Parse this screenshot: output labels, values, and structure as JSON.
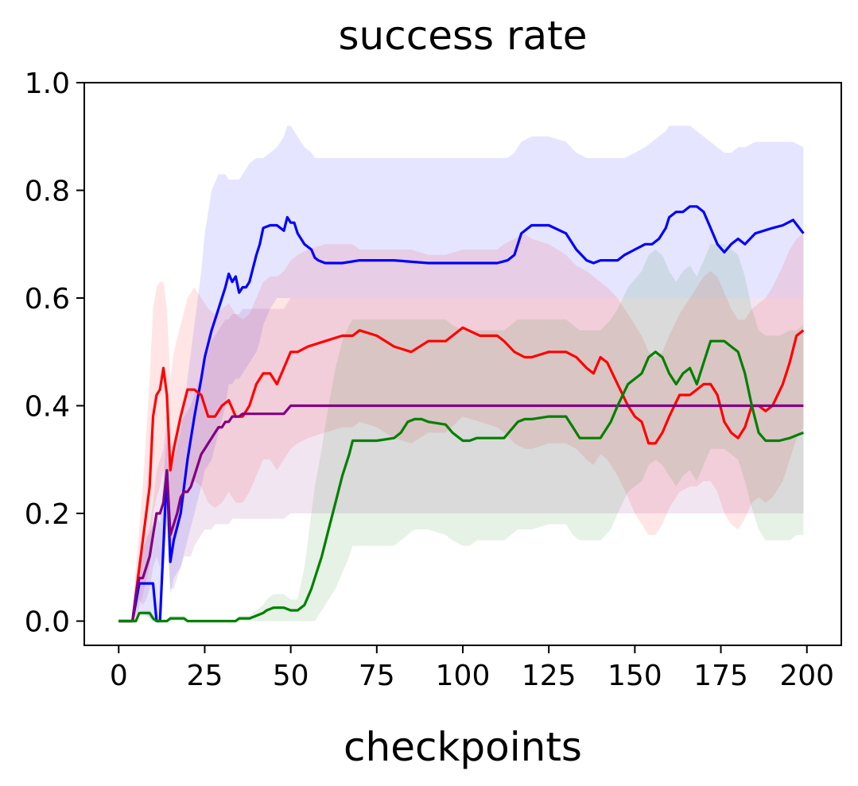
{
  "chart_data": {
    "type": "line",
    "title": "success rate",
    "xlabel": "checkpoints",
    "ylabel": "",
    "xlim": [
      -10,
      210
    ],
    "ylim": [
      -0.045,
      1.0
    ],
    "xticks": [
      0,
      25,
      50,
      75,
      100,
      125,
      150,
      175,
      200
    ],
    "xtick_labels": [
      "0",
      "25",
      "50",
      "75",
      "100",
      "125",
      "150",
      "175",
      "200"
    ],
    "yticks": [
      0.0,
      0.2,
      0.4,
      0.6,
      0.8,
      1.0
    ],
    "ytick_labels": [
      "0.0",
      "0.2",
      "0.4",
      "0.6",
      "0.8",
      "1.0"
    ],
    "grid": false,
    "legend": "none",
    "series": [
      {
        "color": "#0000ff",
        "x": [
          0,
          4,
          6,
          10,
          11,
          12,
          14,
          15,
          16,
          18,
          20,
          22,
          24,
          25,
          27,
          29,
          31,
          32,
          33,
          34,
          35,
          36,
          37,
          38,
          40,
          41,
          42,
          44,
          46,
          48,
          49,
          50,
          51,
          52,
          54,
          56,
          57,
          58,
          60,
          62,
          65,
          70,
          80,
          90,
          100,
          110,
          113,
          115,
          117,
          120,
          125,
          130,
          133,
          136,
          138,
          140,
          145,
          147,
          150,
          153,
          155,
          157,
          159,
          160,
          162,
          164,
          166,
          168,
          170,
          172,
          174,
          176,
          178,
          180,
          182,
          185,
          190,
          193,
          196,
          199
        ],
        "y": [
          0.0,
          0.0,
          0.07,
          0.07,
          0.0,
          0.0,
          0.28,
          0.11,
          0.15,
          0.2,
          0.3,
          0.38,
          0.45,
          0.49,
          0.54,
          0.58,
          0.62,
          0.645,
          0.63,
          0.64,
          0.61,
          0.62,
          0.62,
          0.63,
          0.68,
          0.7,
          0.73,
          0.735,
          0.735,
          0.725,
          0.75,
          0.74,
          0.74,
          0.72,
          0.7,
          0.69,
          0.675,
          0.67,
          0.665,
          0.665,
          0.665,
          0.67,
          0.67,
          0.665,
          0.665,
          0.665,
          0.67,
          0.68,
          0.72,
          0.735,
          0.735,
          0.72,
          0.69,
          0.67,
          0.665,
          0.67,
          0.67,
          0.68,
          0.69,
          0.7,
          0.7,
          0.71,
          0.73,
          0.75,
          0.76,
          0.76,
          0.77,
          0.77,
          0.76,
          0.73,
          0.7,
          0.685,
          0.7,
          0.71,
          0.7,
          0.72,
          0.73,
          0.735,
          0.745,
          0.72
        ],
        "band_upper": [
          0.0,
          0.0,
          0.12,
          0.18,
          0.2,
          0.18,
          0.35,
          0.3,
          0.3,
          0.35,
          0.45,
          0.55,
          0.65,
          0.72,
          0.8,
          0.83,
          0.83,
          0.82,
          0.82,
          0.82,
          0.82,
          0.83,
          0.84,
          0.85,
          0.86,
          0.86,
          0.86,
          0.87,
          0.88,
          0.9,
          0.92,
          0.92,
          0.91,
          0.9,
          0.88,
          0.87,
          0.86,
          0.86,
          0.86,
          0.86,
          0.86,
          0.86,
          0.86,
          0.86,
          0.86,
          0.86,
          0.86,
          0.87,
          0.89,
          0.9,
          0.9,
          0.89,
          0.87,
          0.86,
          0.86,
          0.86,
          0.86,
          0.86,
          0.87,
          0.88,
          0.89,
          0.9,
          0.91,
          0.92,
          0.92,
          0.92,
          0.92,
          0.91,
          0.9,
          0.89,
          0.88,
          0.87,
          0.87,
          0.88,
          0.88,
          0.89,
          0.89,
          0.89,
          0.89,
          0.88
        ],
        "band_lower": [
          0.0,
          0.0,
          0.02,
          0.0,
          0.0,
          0.0,
          0.18,
          0.05,
          0.08,
          0.1,
          0.15,
          0.2,
          0.25,
          0.28,
          0.3,
          0.35,
          0.4,
          0.44,
          0.44,
          0.45,
          0.45,
          0.46,
          0.47,
          0.48,
          0.5,
          0.52,
          0.55,
          0.58,
          0.6,
          0.6,
          0.6,
          0.6,
          0.6,
          0.6,
          0.6,
          0.6,
          0.6,
          0.6,
          0.6,
          0.6,
          0.6,
          0.6,
          0.6,
          0.6,
          0.6,
          0.6,
          0.6,
          0.6,
          0.6,
          0.6,
          0.6,
          0.6,
          0.6,
          0.6,
          0.6,
          0.6,
          0.6,
          0.6,
          0.6,
          0.6,
          0.6,
          0.6,
          0.6,
          0.6,
          0.6,
          0.6,
          0.6,
          0.6,
          0.6,
          0.6,
          0.6,
          0.6,
          0.6,
          0.6,
          0.6,
          0.6,
          0.6,
          0.6,
          0.6,
          0.6
        ]
      },
      {
        "color": "#ff0000",
        "x": [
          0,
          4,
          5,
          7,
          9,
          10,
          11,
          12,
          13,
          14,
          15,
          16,
          18,
          20,
          22,
          24,
          26,
          28,
          30,
          32,
          34,
          36,
          38,
          40,
          42,
          44,
          46,
          48,
          50,
          52,
          55,
          60,
          65,
          68,
          70,
          75,
          80,
          85,
          90,
          95,
          100,
          105,
          110,
          112,
          115,
          118,
          120,
          125,
          130,
          133,
          136,
          138,
          140,
          142,
          145,
          148,
          150,
          152,
          154,
          156,
          158,
          160,
          163,
          166,
          168,
          170,
          172,
          174,
          176,
          178,
          180,
          182,
          184,
          186,
          188,
          190,
          193,
          195,
          197,
          199
        ],
        "y": [
          0.0,
          0.0,
          0.05,
          0.15,
          0.25,
          0.38,
          0.42,
          0.43,
          0.47,
          0.42,
          0.28,
          0.32,
          0.38,
          0.43,
          0.43,
          0.42,
          0.38,
          0.38,
          0.4,
          0.41,
          0.38,
          0.38,
          0.4,
          0.44,
          0.46,
          0.46,
          0.44,
          0.47,
          0.5,
          0.5,
          0.51,
          0.52,
          0.53,
          0.53,
          0.54,
          0.53,
          0.51,
          0.5,
          0.52,
          0.52,
          0.545,
          0.53,
          0.53,
          0.52,
          0.5,
          0.49,
          0.49,
          0.5,
          0.5,
          0.49,
          0.47,
          0.46,
          0.49,
          0.48,
          0.44,
          0.4,
          0.38,
          0.37,
          0.33,
          0.33,
          0.35,
          0.38,
          0.42,
          0.42,
          0.43,
          0.44,
          0.44,
          0.42,
          0.37,
          0.35,
          0.34,
          0.36,
          0.4,
          0.4,
          0.39,
          0.4,
          0.44,
          0.48,
          0.53,
          0.54
        ],
        "band_upper": [
          0.0,
          0.0,
          0.1,
          0.25,
          0.45,
          0.58,
          0.62,
          0.63,
          0.63,
          0.58,
          0.45,
          0.5,
          0.55,
          0.6,
          0.62,
          0.6,
          0.58,
          0.57,
          0.58,
          0.59,
          0.57,
          0.56,
          0.57,
          0.6,
          0.63,
          0.64,
          0.64,
          0.65,
          0.67,
          0.68,
          0.69,
          0.7,
          0.7,
          0.7,
          0.69,
          0.69,
          0.69,
          0.69,
          0.68,
          0.68,
          0.69,
          0.69,
          0.69,
          0.7,
          0.71,
          0.72,
          0.71,
          0.7,
          0.68,
          0.66,
          0.65,
          0.64,
          0.63,
          0.62,
          0.6,
          0.57,
          0.55,
          0.53,
          0.5,
          0.49,
          0.5,
          0.53,
          0.57,
          0.6,
          0.62,
          0.64,
          0.65,
          0.64,
          0.61,
          0.58,
          0.56,
          0.56,
          0.58,
          0.59,
          0.6,
          0.62,
          0.66,
          0.69,
          0.71,
          0.72
        ],
        "band_lower": [
          0.0,
          0.0,
          0.0,
          0.05,
          0.1,
          0.2,
          0.23,
          0.25,
          0.28,
          0.22,
          0.12,
          0.15,
          0.2,
          0.25,
          0.26,
          0.25,
          0.22,
          0.21,
          0.22,
          0.24,
          0.22,
          0.22,
          0.24,
          0.27,
          0.3,
          0.3,
          0.28,
          0.3,
          0.32,
          0.33,
          0.34,
          0.35,
          0.36,
          0.36,
          0.37,
          0.36,
          0.34,
          0.33,
          0.35,
          0.35,
          0.38,
          0.37,
          0.36,
          0.35,
          0.33,
          0.32,
          0.32,
          0.33,
          0.33,
          0.32,
          0.3,
          0.29,
          0.31,
          0.3,
          0.27,
          0.23,
          0.2,
          0.18,
          0.16,
          0.16,
          0.18,
          0.21,
          0.24,
          0.25,
          0.25,
          0.26,
          0.26,
          0.24,
          0.2,
          0.18,
          0.17,
          0.19,
          0.22,
          0.23,
          0.22,
          0.23,
          0.26,
          0.3,
          0.34,
          0.36
        ]
      },
      {
        "color": "#800080",
        "x": [
          0,
          4,
          5,
          6,
          7,
          8,
          9,
          10,
          11,
          12,
          13,
          14,
          15,
          16,
          17,
          18,
          19,
          20,
          21,
          22,
          23,
          24,
          25,
          26,
          27,
          28,
          29,
          30,
          31,
          32,
          33,
          34,
          35,
          36,
          37,
          38,
          39,
          40,
          45,
          48,
          50,
          60,
          80,
          100,
          120,
          140,
          160,
          180,
          199
        ],
        "y": [
          0.0,
          0.0,
          0.05,
          0.08,
          0.08,
          0.1,
          0.12,
          0.16,
          0.2,
          0.2,
          0.22,
          0.28,
          0.16,
          0.18,
          0.2,
          0.23,
          0.24,
          0.24,
          0.25,
          0.27,
          0.29,
          0.31,
          0.32,
          0.33,
          0.34,
          0.35,
          0.36,
          0.36,
          0.37,
          0.37,
          0.38,
          0.38,
          0.38,
          0.385,
          0.385,
          0.385,
          0.385,
          0.385,
          0.385,
          0.385,
          0.4,
          0.4,
          0.4,
          0.4,
          0.4,
          0.4,
          0.4,
          0.4,
          0.4
        ],
        "band_upper": [
          0.0,
          0.0,
          0.08,
          0.12,
          0.13,
          0.16,
          0.18,
          0.22,
          0.28,
          0.3,
          0.32,
          0.38,
          0.3,
          0.32,
          0.34,
          0.37,
          0.38,
          0.39,
          0.4,
          0.42,
          0.44,
          0.46,
          0.48,
          0.5,
          0.52,
          0.53,
          0.54,
          0.55,
          0.56,
          0.56,
          0.57,
          0.57,
          0.57,
          0.58,
          0.58,
          0.58,
          0.58,
          0.58,
          0.58,
          0.58,
          0.6,
          0.6,
          0.6,
          0.6,
          0.6,
          0.6,
          0.6,
          0.6,
          0.6
        ],
        "band_lower": [
          0.0,
          0.0,
          0.02,
          0.04,
          0.03,
          0.04,
          0.06,
          0.1,
          0.12,
          0.1,
          0.12,
          0.18,
          0.06,
          0.06,
          0.08,
          0.1,
          0.12,
          0.12,
          0.12,
          0.14,
          0.15,
          0.16,
          0.17,
          0.17,
          0.17,
          0.18,
          0.18,
          0.18,
          0.18,
          0.18,
          0.19,
          0.19,
          0.19,
          0.19,
          0.19,
          0.19,
          0.19,
          0.19,
          0.19,
          0.19,
          0.2,
          0.2,
          0.2,
          0.2,
          0.2,
          0.2,
          0.2,
          0.2,
          0.2
        ]
      },
      {
        "color": "#008000",
        "x": [
          0,
          5,
          6,
          9,
          10,
          11,
          14,
          15,
          19,
          20,
          34,
          35,
          38,
          40,
          42,
          43,
          45,
          48,
          50,
          51,
          52,
          54,
          56,
          57,
          59,
          61,
          63,
          65,
          67,
          68,
          70,
          75,
          80,
          82,
          84,
          86,
          88,
          90,
          95,
          97,
          100,
          102,
          104,
          110,
          112,
          114,
          116,
          118,
          120,
          125,
          130,
          132,
          134,
          140,
          143,
          145,
          148,
          152,
          154,
          156,
          158,
          160,
          162,
          164,
          166,
          168,
          170,
          172,
          176,
          178,
          180,
          182,
          184,
          186,
          188,
          190,
          192,
          195,
          197,
          199
        ],
        "y": [
          0.0,
          0.0,
          0.015,
          0.015,
          0.005,
          0.0,
          0.0,
          0.005,
          0.005,
          0.0,
          0.0,
          0.005,
          0.005,
          0.01,
          0.015,
          0.02,
          0.025,
          0.025,
          0.02,
          0.02,
          0.02,
          0.03,
          0.06,
          0.08,
          0.12,
          0.17,
          0.22,
          0.27,
          0.31,
          0.335,
          0.335,
          0.335,
          0.34,
          0.35,
          0.37,
          0.375,
          0.375,
          0.37,
          0.365,
          0.35,
          0.335,
          0.335,
          0.34,
          0.34,
          0.34,
          0.355,
          0.37,
          0.375,
          0.375,
          0.38,
          0.38,
          0.36,
          0.34,
          0.34,
          0.37,
          0.4,
          0.44,
          0.46,
          0.49,
          0.5,
          0.49,
          0.46,
          0.44,
          0.46,
          0.47,
          0.44,
          0.48,
          0.52,
          0.52,
          0.51,
          0.5,
          0.46,
          0.4,
          0.35,
          0.335,
          0.335,
          0.335,
          0.34,
          0.345,
          0.35
        ],
        "band_upper": [
          0.0,
          0.0,
          0.02,
          0.02,
          0.01,
          0.0,
          0.0,
          0.01,
          0.01,
          0.0,
          0.0,
          0.01,
          0.01,
          0.02,
          0.03,
          0.04,
          0.05,
          0.05,
          0.04,
          0.04,
          0.04,
          0.1,
          0.2,
          0.25,
          0.32,
          0.4,
          0.47,
          0.52,
          0.55,
          0.56,
          0.56,
          0.56,
          0.56,
          0.56,
          0.56,
          0.56,
          0.56,
          0.56,
          0.56,
          0.55,
          0.54,
          0.54,
          0.54,
          0.54,
          0.54,
          0.55,
          0.56,
          0.56,
          0.56,
          0.56,
          0.56,
          0.55,
          0.54,
          0.54,
          0.56,
          0.58,
          0.62,
          0.65,
          0.68,
          0.69,
          0.68,
          0.65,
          0.63,
          0.65,
          0.66,
          0.64,
          0.67,
          0.7,
          0.7,
          0.69,
          0.68,
          0.64,
          0.58,
          0.54,
          0.53,
          0.53,
          0.53,
          0.54,
          0.54,
          0.55
        ],
        "band_lower": [
          0.0,
          0.0,
          0.01,
          0.01,
          0.0,
          0.0,
          0.0,
          0.0,
          0.0,
          0.0,
          0.0,
          0.0,
          0.0,
          0.0,
          0.0,
          0.0,
          0.0,
          0.0,
          0.0,
          0.0,
          0.0,
          0.0,
          0.0,
          0.0,
          0.02,
          0.04,
          0.06,
          0.09,
          0.12,
          0.14,
          0.14,
          0.14,
          0.14,
          0.15,
          0.16,
          0.17,
          0.17,
          0.17,
          0.16,
          0.15,
          0.14,
          0.14,
          0.15,
          0.15,
          0.15,
          0.16,
          0.17,
          0.17,
          0.17,
          0.18,
          0.18,
          0.16,
          0.15,
          0.15,
          0.17,
          0.2,
          0.24,
          0.26,
          0.29,
          0.3,
          0.29,
          0.27,
          0.25,
          0.27,
          0.28,
          0.26,
          0.29,
          0.32,
          0.32,
          0.31,
          0.3,
          0.26,
          0.21,
          0.17,
          0.15,
          0.15,
          0.15,
          0.15,
          0.16,
          0.16
        ]
      }
    ]
  }
}
